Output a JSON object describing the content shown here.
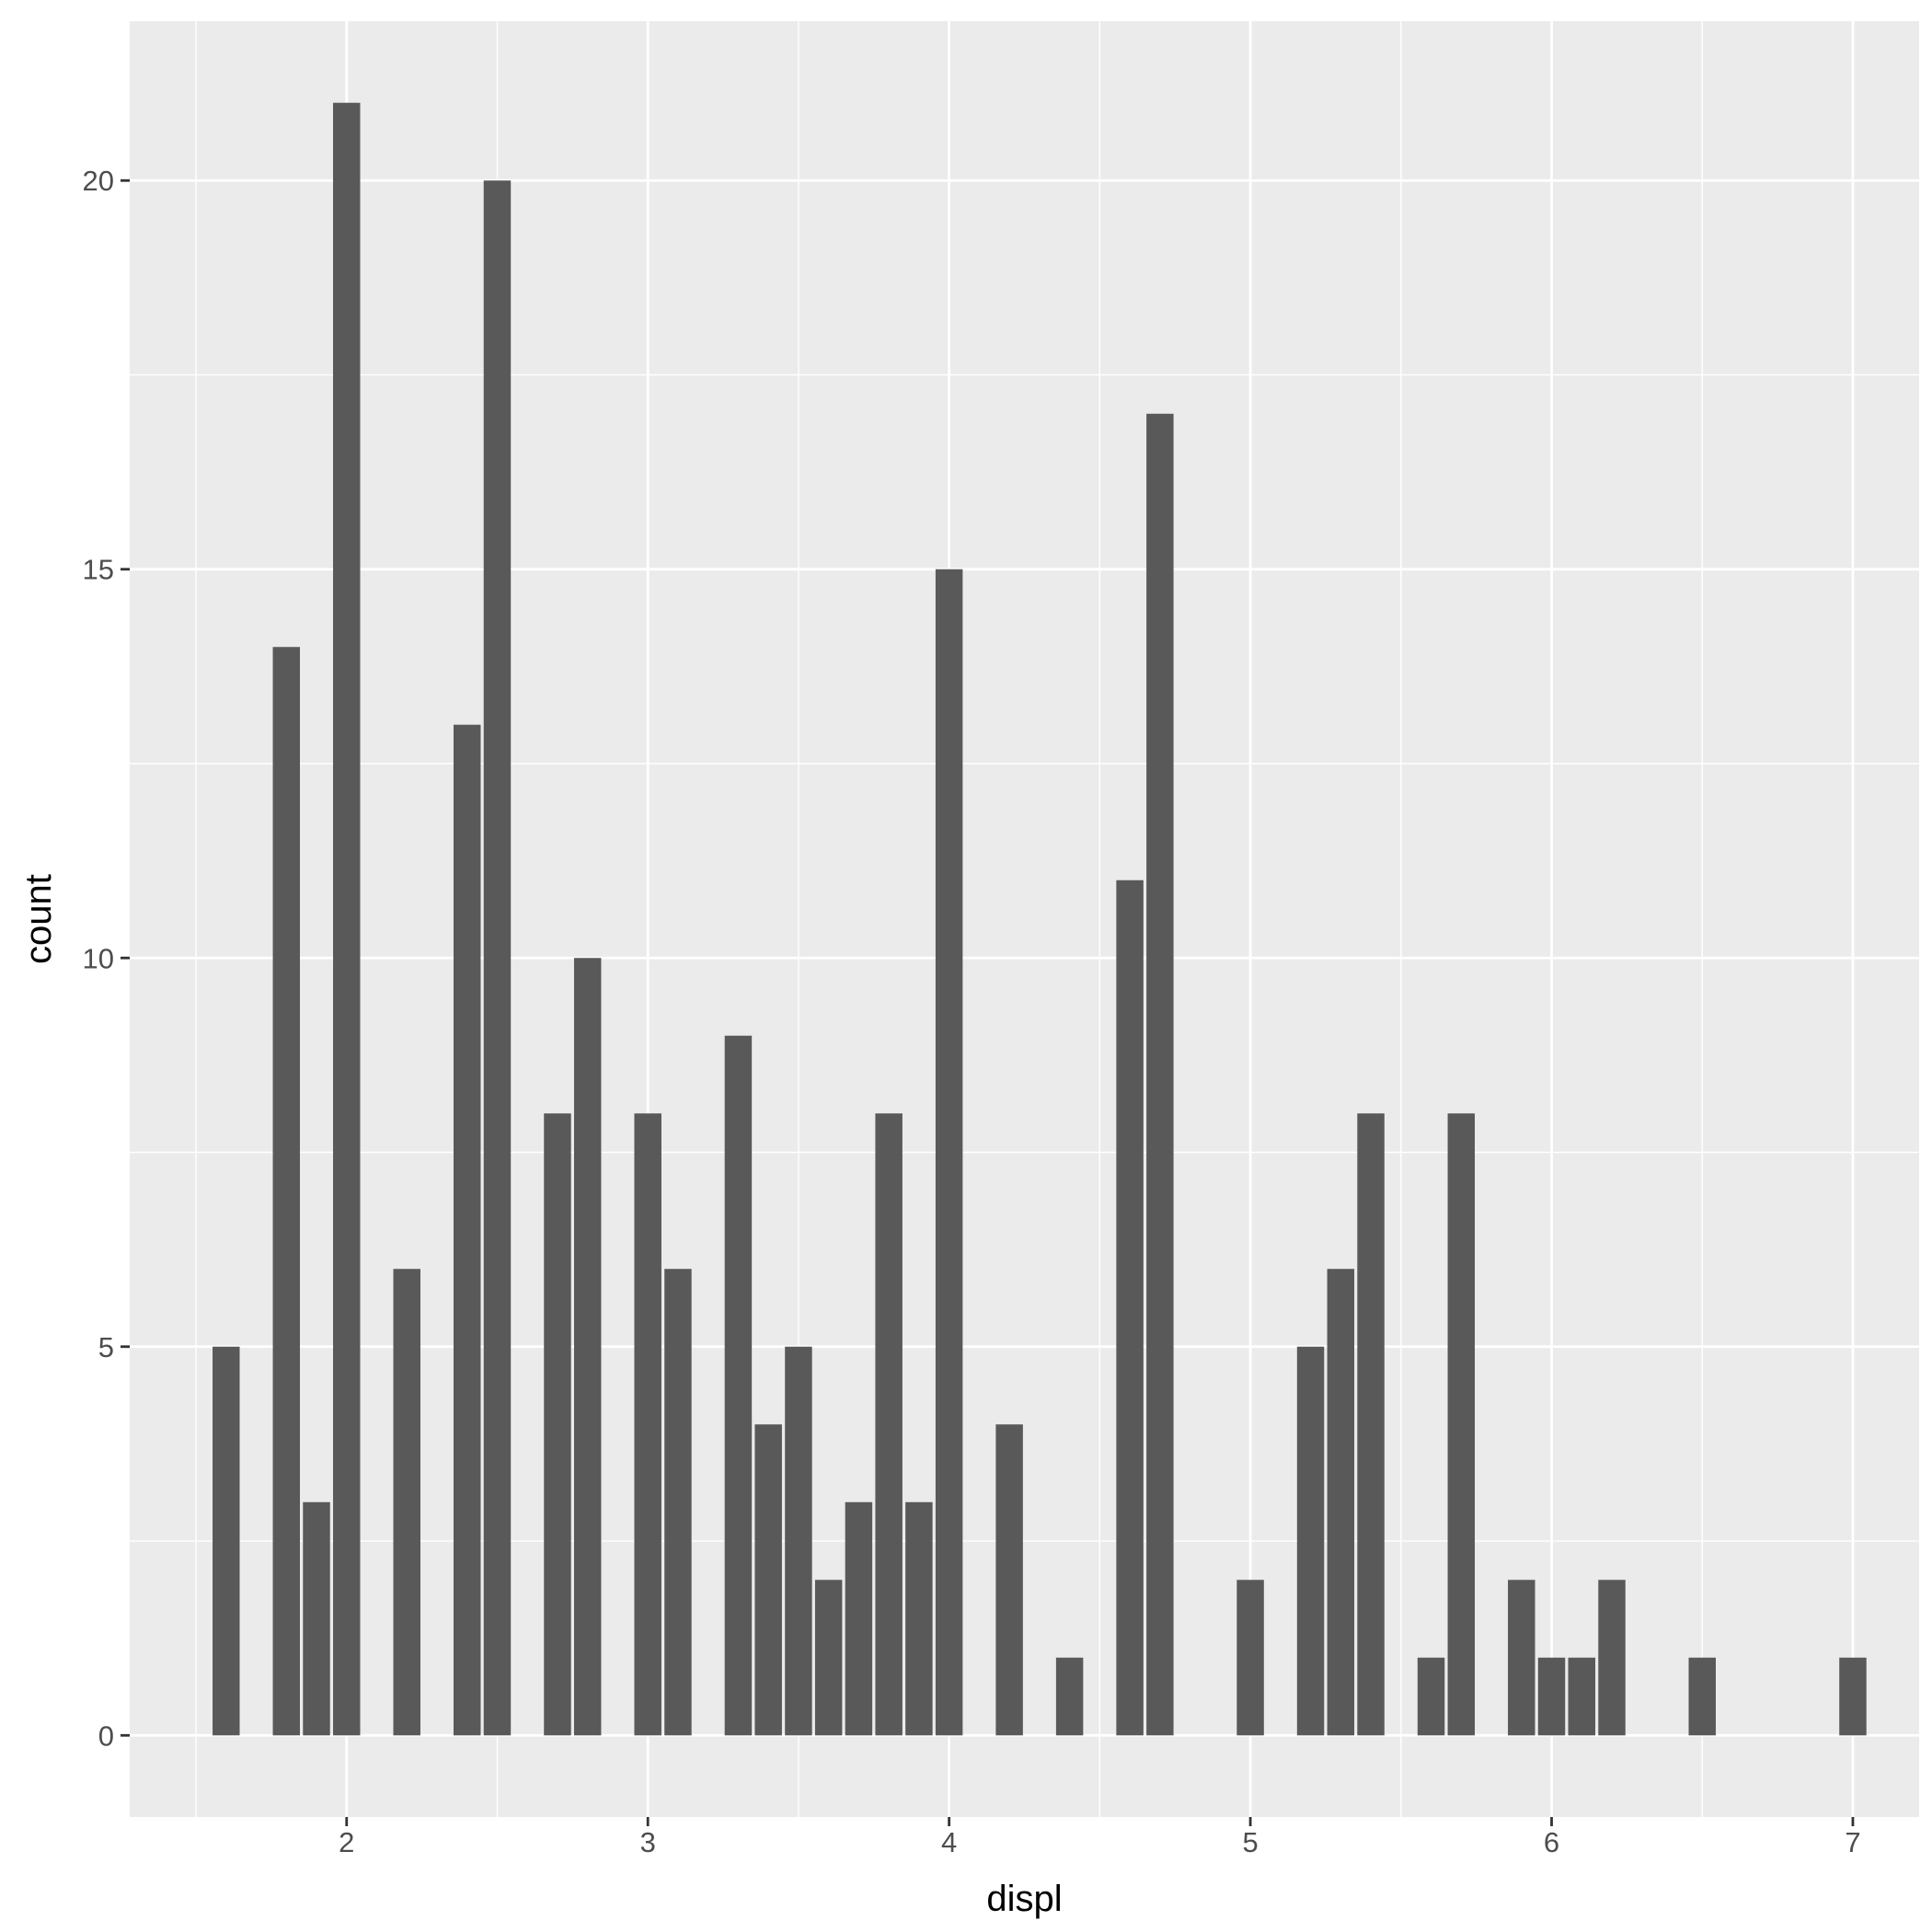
{
  "chart_data": {
    "type": "bar",
    "title": "",
    "xlabel": "displ",
    "ylabel": "count",
    "xlim": [
      1.28,
      7.22
    ],
    "ylim": [
      -1.05,
      22.05
    ],
    "x_ticks": [
      2,
      3,
      4,
      5,
      6,
      7
    ],
    "y_ticks": [
      0,
      5,
      10,
      15,
      20
    ],
    "bar_width": 0.09,
    "grid": true,
    "colors": {
      "panel": "#ebebeb",
      "grid": "#ffffff",
      "bar": "#595959",
      "tick_text": "#4d4d4d"
    },
    "x": [
      1.6,
      1.8,
      1.9,
      2.0,
      2.2,
      2.4,
      2.5,
      2.7,
      2.8,
      3.0,
      3.1,
      3.3,
      3.4,
      3.5,
      3.6,
      3.7,
      3.8,
      3.9,
      4.0,
      4.2,
      4.4,
      4.6,
      4.7,
      5.0,
      5.2,
      5.3,
      5.4,
      5.6,
      5.7,
      5.9,
      6.0,
      6.1,
      6.2,
      6.5,
      7.0
    ],
    "values": [
      5,
      14,
      3,
      21,
      6,
      13,
      20,
      8,
      10,
      8,
      6,
      9,
      4,
      5,
      2,
      3,
      8,
      3,
      15,
      4,
      1,
      11,
      17,
      2,
      5,
      6,
      8,
      1,
      8,
      2,
      1,
      1,
      2,
      1,
      1
    ]
  }
}
